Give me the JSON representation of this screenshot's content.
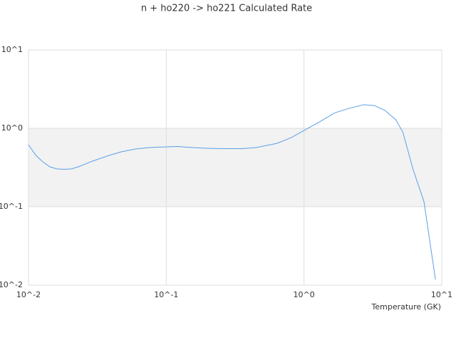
{
  "chart_data": {
    "type": "line",
    "title": "n + ho220 -> ho221 Calculated Rate",
    "x_label": "Temperature (GK)",
    "xlog": true,
    "ylog": true,
    "xlim": [
      0.01,
      10
    ],
    "ylim": [
      0.01,
      10
    ],
    "xticks": [
      {
        "value": 0.01,
        "label": "10^-2"
      },
      {
        "value": 0.1,
        "label": "10^-1"
      },
      {
        "value": 1,
        "label": "10^0"
      },
      {
        "value": 10,
        "label": "10^1"
      }
    ],
    "yticks": [
      {
        "value": 0.01,
        "label": "10^-2"
      },
      {
        "value": 0.1,
        "label": "10^-1"
      },
      {
        "value": 1,
        "label": "10^0"
      },
      {
        "value": 10,
        "label": "10^1"
      }
    ],
    "band_color": "#f2f2f2",
    "x": [
      0.01,
      0.0113,
      0.0127,
      0.0143,
      0.0161,
      0.0181,
      0.0204,
      0.023,
      0.0292,
      0.0371,
      0.047,
      0.0597,
      0.0757,
      0.1,
      0.122,
      0.155,
      0.197,
      0.25,
      0.357,
      0.45,
      0.64,
      0.81,
      1.0,
      1.32,
      1.68,
      2.13,
      2.71,
      3.24,
      3.87,
      4.63,
      5.21,
      6.2,
      7.43,
      9.0
    ],
    "series": [
      {
        "color": "#5b9fe6",
        "values": [
          0.618,
          0.452,
          0.374,
          0.323,
          0.303,
          0.3,
          0.303,
          0.323,
          0.382,
          0.442,
          0.501,
          0.545,
          0.568,
          0.58,
          0.586,
          0.568,
          0.557,
          0.551,
          0.551,
          0.568,
          0.644,
          0.762,
          0.939,
          1.23,
          1.58,
          1.8,
          2.0,
          1.95,
          1.69,
          1.29,
          0.9,
          0.297,
          0.116,
          0.0118
        ]
      }
    ]
  }
}
